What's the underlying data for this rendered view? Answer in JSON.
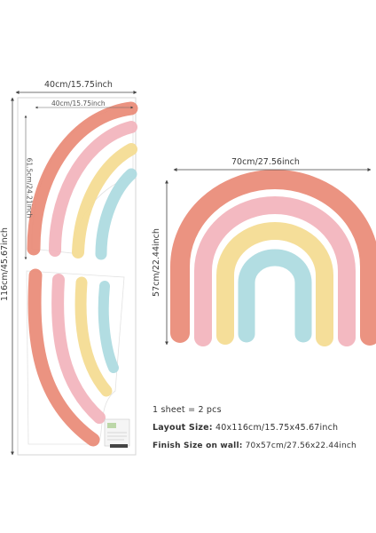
{
  "left_sheet": {
    "width_label": "40cm/15.75inch",
    "inner_width_label": "40cm/15.75inch",
    "height_label": "116cm/45.67inch",
    "inner_height_label": "61.5cm/24.21inch"
  },
  "assembled": {
    "width_label": "70cm/27.56inch",
    "height_label": "57cm/22.44inch"
  },
  "info": {
    "sheets": "1 sheet = 2 pcs",
    "layout_key": "Layout Size:",
    "layout_value": "40x116cm/15.75x45.67inch",
    "finish_key": "Finish Size on wall:",
    "finish_value": "70x57cm/27.56x22.44inch"
  },
  "colors": {
    "coral": "#e98a76",
    "pink": "#f2b5be",
    "yellow": "#f4dc93",
    "blue": "#aedbe0",
    "dim_line": "#444444"
  }
}
